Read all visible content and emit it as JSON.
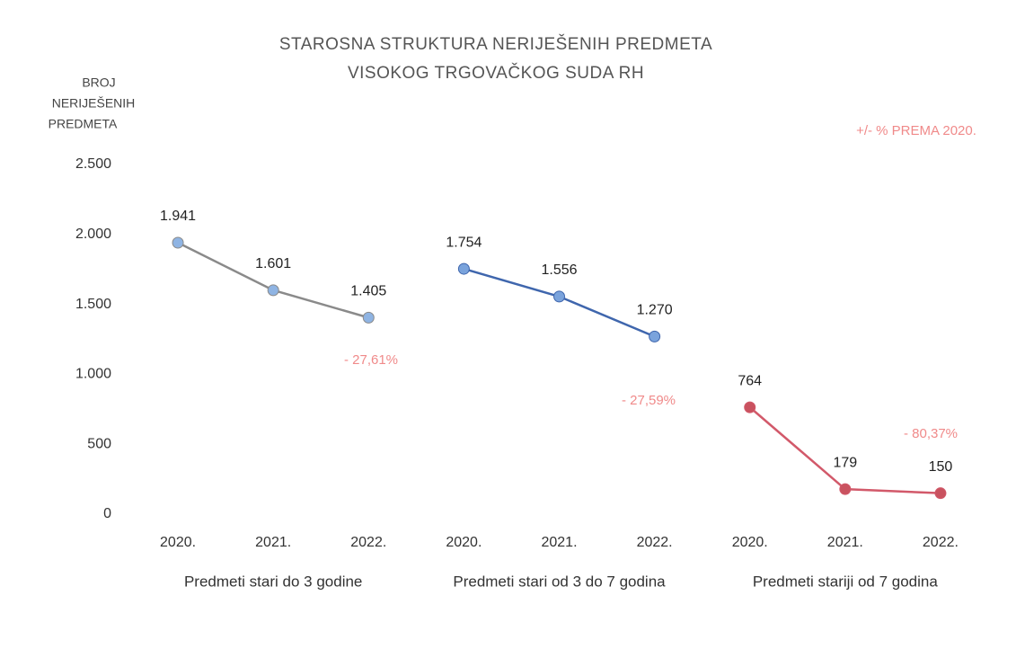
{
  "chart_data": {
    "type": "line",
    "title": [
      "STAROSNA STRUKTURA NERIJEŠENIH PREDMETA",
      "VISOKOG TRGOVAČKOG SUDA RH"
    ],
    "y_label": [
      "BROJ",
      "NERIJEŠENIH",
      "PREDMETA"
    ],
    "categories": [
      "2020.",
      "2021.",
      "2022.",
      "2020.",
      "2021.",
      "2022.",
      "2020.",
      "2021.",
      "2022."
    ],
    "series": [
      {
        "name": "Predmeti stari do 3 godine",
        "color": "#8a8a8a",
        "marker_color": "#8fb4e3",
        "values": [
          1941,
          1601,
          1405,
          null,
          null,
          null,
          null,
          null,
          null
        ],
        "value_labels": [
          "1.941",
          "1.601",
          "1.405",
          null,
          null,
          null,
          null,
          null,
          null
        ]
      },
      {
        "name": "Predmeti stari od 3 do 7 godina",
        "color": "#3f66ad",
        "marker_color": "#7aa3dc",
        "values": [
          null,
          null,
          null,
          1754,
          1556,
          1270,
          null,
          null,
          null
        ],
        "value_labels": [
          null,
          null,
          null,
          "1.754",
          "1.556",
          "1.270",
          null,
          null,
          null
        ]
      },
      {
        "name": "Predmeti stariji od 7 godina",
        "color": "#d2596a",
        "marker_color": "#c9525f",
        "values": [
          null,
          null,
          null,
          null,
          null,
          null,
          764,
          179,
          150
        ]
      }
    ],
    "annotations": [
      "+/- % PREMA 2020.",
      "- 27,61%",
      "- 27,59%",
      "- 80,37%"
    ],
    "ylim": [
      0,
      2500
    ],
    "yticks": [
      0,
      500,
      {
        "value": 1000,
        "label": "1.000"
      },
      {
        "value": 1500,
        "label": "1.500"
      },
      {
        "value": 2000,
        "label": "2.000"
      },
      {
        "value": 2500,
        "label": "2.500"
      }
    ],
    "grid": false
  }
}
